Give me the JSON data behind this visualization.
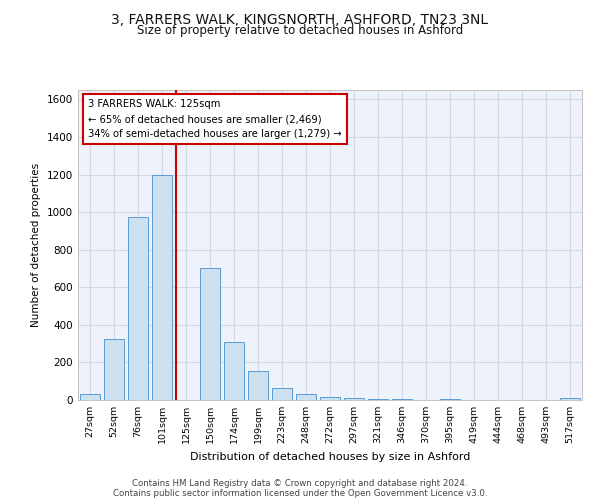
{
  "title_line1": "3, FARRERS WALK, KINGSNORTH, ASHFORD, TN23 3NL",
  "title_line2": "Size of property relative to detached houses in Ashford",
  "xlabel": "Distribution of detached houses by size in Ashford",
  "ylabel": "Number of detached properties",
  "footer_line1": "Contains HM Land Registry data © Crown copyright and database right 2024.",
  "footer_line2": "Contains public sector information licensed under the Open Government Licence v3.0.",
  "categories": [
    "27sqm",
    "52sqm",
    "76sqm",
    "101sqm",
    "125sqm",
    "150sqm",
    "174sqm",
    "199sqm",
    "223sqm",
    "248sqm",
    "272sqm",
    "297sqm",
    "321sqm",
    "346sqm",
    "370sqm",
    "395sqm",
    "419sqm",
    "444sqm",
    "468sqm",
    "493sqm",
    "517sqm"
  ],
  "values": [
    30,
    325,
    975,
    1200,
    0,
    700,
    310,
    155,
    65,
    30,
    15,
    10,
    5,
    5,
    0,
    5,
    0,
    0,
    0,
    0,
    10
  ],
  "bar_color": "#cce0f0",
  "bar_edge_color": "#5b9bd5",
  "red_line_index": 4,
  "ylim": [
    0,
    1650
  ],
  "yticks": [
    0,
    200,
    400,
    600,
    800,
    1000,
    1200,
    1400,
    1600
  ],
  "annotation_line1": "3 FARRERS WALK: 125sqm",
  "annotation_line2": "← 65% of detached houses are smaller (2,469)",
  "annotation_line3": "34% of semi-detached houses are larger (1,279) →",
  "annotation_box_color": "#ffffff",
  "annotation_box_edge_color": "#cc0000",
  "grid_color": "#d0d8e8",
  "background_color": "#eef2fb"
}
